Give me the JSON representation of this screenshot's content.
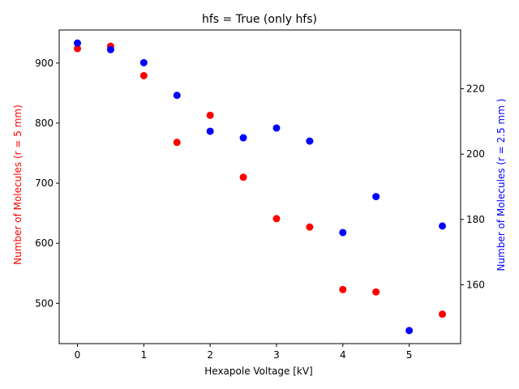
{
  "chart_data": {
    "type": "scatter",
    "title": "hfs = True (only hfs)",
    "xlabel": "Hexapole Voltage [kV]",
    "ylabel_left": "Number of Molecules (r = 5 mm)",
    "ylabel_right": "Number of Molecules (r = 2.5 mm )",
    "xlim": [
      -0.275,
      5.775
    ],
    "ylim_left": [
      433,
      955
    ],
    "ylim_right": [
      142,
      238
    ],
    "xticks": [
      0,
      1,
      2,
      3,
      4,
      5
    ],
    "yticks_left": [
      500,
      600,
      700,
      800,
      900
    ],
    "yticks_right": [
      160,
      180,
      200,
      220
    ],
    "grid": false,
    "colors": {
      "left": "#ff0000",
      "right": "#0000ff",
      "axis": "#000000"
    },
    "series": [
      {
        "axis": "left",
        "color": "#ff0000",
        "x": [
          0,
          0.5,
          1.0,
          1.5,
          2.0,
          2.5,
          3.0,
          3.5,
          4.0,
          4.5,
          5.5
        ],
        "y": [
          924,
          928,
          879,
          768,
          813,
          710,
          641,
          627,
          523,
          519,
          482
        ]
      },
      {
        "axis": "right",
        "color": "#0000ff",
        "x": [
          0,
          0.5,
          1.0,
          1.5,
          2.0,
          2.5,
          3.0,
          3.5,
          4.0,
          4.5,
          5.0,
          5.5
        ],
        "y": [
          234,
          232,
          228,
          218,
          207,
          205,
          208,
          204,
          176,
          187,
          146,
          178
        ]
      }
    ]
  }
}
